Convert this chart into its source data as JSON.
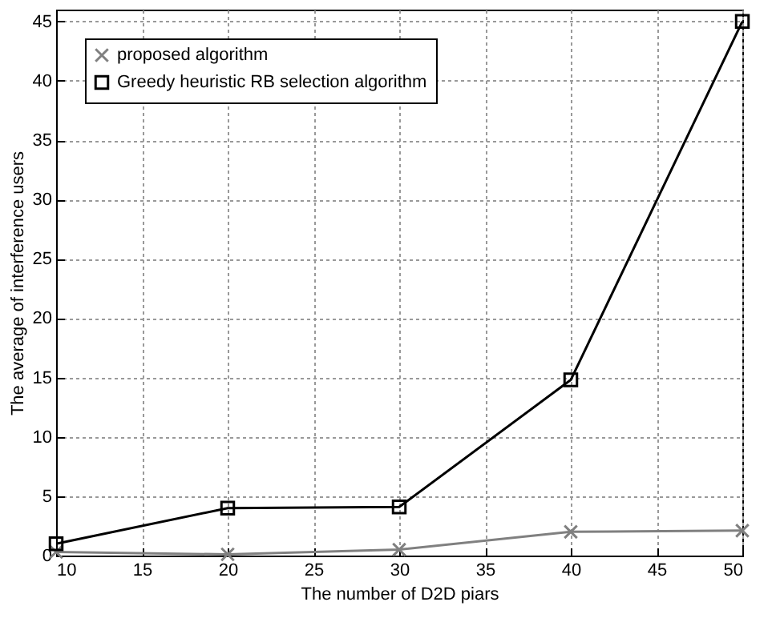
{
  "chart_data": {
    "type": "line",
    "xlabel": "The number of D2D piars",
    "ylabel": "The average of interference users",
    "x": [
      10,
      20,
      30,
      40,
      50
    ],
    "series": [
      {
        "name": "proposed algorithm",
        "color": "#808080",
        "marker": "cross",
        "values": [
          0.3,
          0.1,
          0.5,
          2,
          2.1
        ]
      },
      {
        "name": "Greedy heuristic RB selection algorithm",
        "color": "#000000",
        "marker": "square",
        "values": [
          1,
          4,
          4.1,
          14.8,
          45
        ]
      }
    ],
    "xlim": [
      10,
      50
    ],
    "xticks": [
      10,
      15,
      20,
      25,
      30,
      35,
      40,
      45,
      50
    ],
    "ylim": [
      0,
      46
    ],
    "yticks": [
      0,
      5,
      10,
      15,
      20,
      25,
      30,
      35,
      40,
      45
    ],
    "grid": true,
    "legend": "top left",
    "line_style": "solid"
  }
}
